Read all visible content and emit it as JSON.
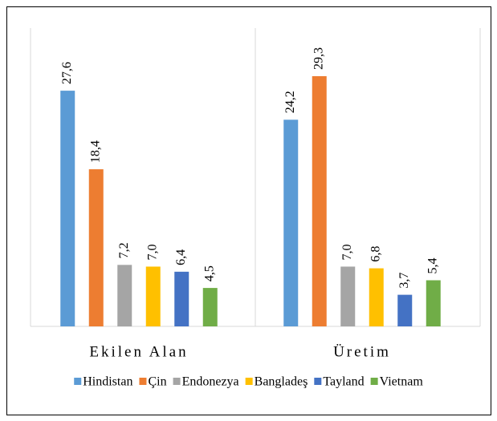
{
  "chart_data": {
    "type": "bar",
    "categories": [
      "Ekilen Alan",
      "Üretim"
    ],
    "series": [
      {
        "name": "Hindistan",
        "color": "#5b9bd5",
        "values": [
          27.6,
          24.2
        ],
        "value_labels": [
          "27,6",
          "24,2"
        ]
      },
      {
        "name": "Çin",
        "color": "#ed7d31",
        "values": [
          18.4,
          29.3
        ],
        "value_labels": [
          "18,4",
          "29,3"
        ]
      },
      {
        "name": "Endonezya",
        "color": "#a5a5a5",
        "values": [
          7.2,
          7.0
        ],
        "value_labels": [
          "7,2",
          "7,0"
        ]
      },
      {
        "name": "Bangladeş",
        "color": "#ffc000",
        "values": [
          7.0,
          6.8
        ],
        "value_labels": [
          "7,0",
          "6,8"
        ]
      },
      {
        "name": "Tayland",
        "color": "#4472c4",
        "values": [
          6.4,
          3.7
        ],
        "value_labels": [
          "6,4",
          "3,7"
        ]
      },
      {
        "name": "Vietnam",
        "color": "#70ad47",
        "values": [
          4.5,
          5.4
        ],
        "value_labels": [
          "4,5",
          "5,4"
        ]
      }
    ],
    "legend": "bottom"
  }
}
